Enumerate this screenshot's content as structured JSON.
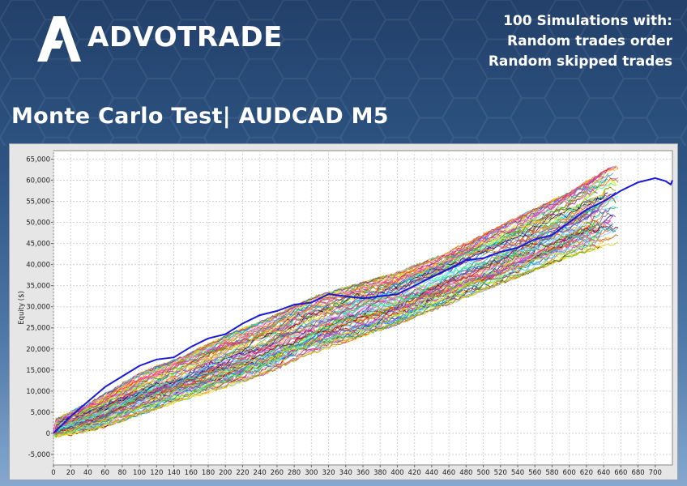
{
  "brand": {
    "name": "ADVOTRADE",
    "logo_icon": "advotrade-a-mark-icon"
  },
  "header": {
    "simulation_lines": [
      "100 Simulations with:",
      "Random trades order",
      "Random skipped trades"
    ],
    "title": "Monte Carlo Test| AUDCAD M5"
  },
  "colors": {
    "background_top": "#22406a",
    "background_bottom": "#86a8cf",
    "plot_background": "#ffffff",
    "frame_background": "#e6e6e6",
    "highlight_series": "#1a1ad8"
  },
  "chart_data": {
    "type": "line",
    "title": "",
    "xlabel": "",
    "ylabel": "Equity ($)",
    "xlim": [
      0,
      720
    ],
    "ylim": [
      -7500,
      67000
    ],
    "x_ticks": [
      0,
      20,
      40,
      60,
      80,
      100,
      120,
      140,
      160,
      180,
      200,
      220,
      240,
      260,
      280,
      300,
      320,
      340,
      360,
      380,
      400,
      420,
      440,
      460,
      480,
      500,
      520,
      540,
      560,
      580,
      600,
      620,
      640,
      660,
      680,
      700
    ],
    "y_ticks": [
      -5000,
      0,
      5000,
      10000,
      15000,
      20000,
      25000,
      30000,
      35000,
      40000,
      45000,
      50000,
      55000,
      60000,
      65000
    ],
    "y_tick_labels": [
      "-5,000",
      "0",
      "5,000",
      "10,000",
      "15,000",
      "20,000",
      "25,000",
      "30,000",
      "35,000",
      "40,000",
      "45,000",
      "50,000",
      "55,000",
      "60,000",
      "65,000"
    ],
    "grid": true,
    "legend": "none",
    "simulation_count": 100,
    "envelope": {
      "x": [
        0,
        50,
        100,
        150,
        200,
        250,
        300,
        350,
        400,
        450,
        500,
        550,
        600,
        650
      ],
      "lower": [
        -1000,
        1000,
        4500,
        8000,
        11000,
        14500,
        19000,
        22500,
        26000,
        30000,
        34000,
        38000,
        42000,
        45000
      ],
      "upper": [
        3000,
        8000,
        14000,
        18000,
        23000,
        27000,
        32000,
        35000,
        38000,
        42000,
        47000,
        52000,
        57000,
        63000
      ]
    },
    "series": [
      {
        "x": [
          0,
          20,
          40,
          60,
          80,
          100,
          120,
          140,
          160,
          180,
          200,
          220,
          240,
          260,
          280,
          300,
          320,
          340,
          360,
          380,
          400,
          420,
          440,
          460,
          480,
          500,
          520,
          540,
          560,
          580,
          600,
          620,
          640,
          660,
          680,
          700,
          712,
          718,
          720
        ],
        "y": [
          0,
          4000,
          7500,
          11000,
          13500,
          16000,
          17500,
          18000,
          20500,
          22500,
          23500,
          26000,
          28000,
          29000,
          30500,
          31000,
          33000,
          32500,
          32000,
          32500,
          33000,
          35000,
          37000,
          39000,
          41000,
          41500,
          43000,
          44000,
          46000,
          47000,
          50000,
          53000,
          55000,
          57500,
          59500,
          60500,
          59800,
          59000,
          60000
        ]
      }
    ]
  }
}
